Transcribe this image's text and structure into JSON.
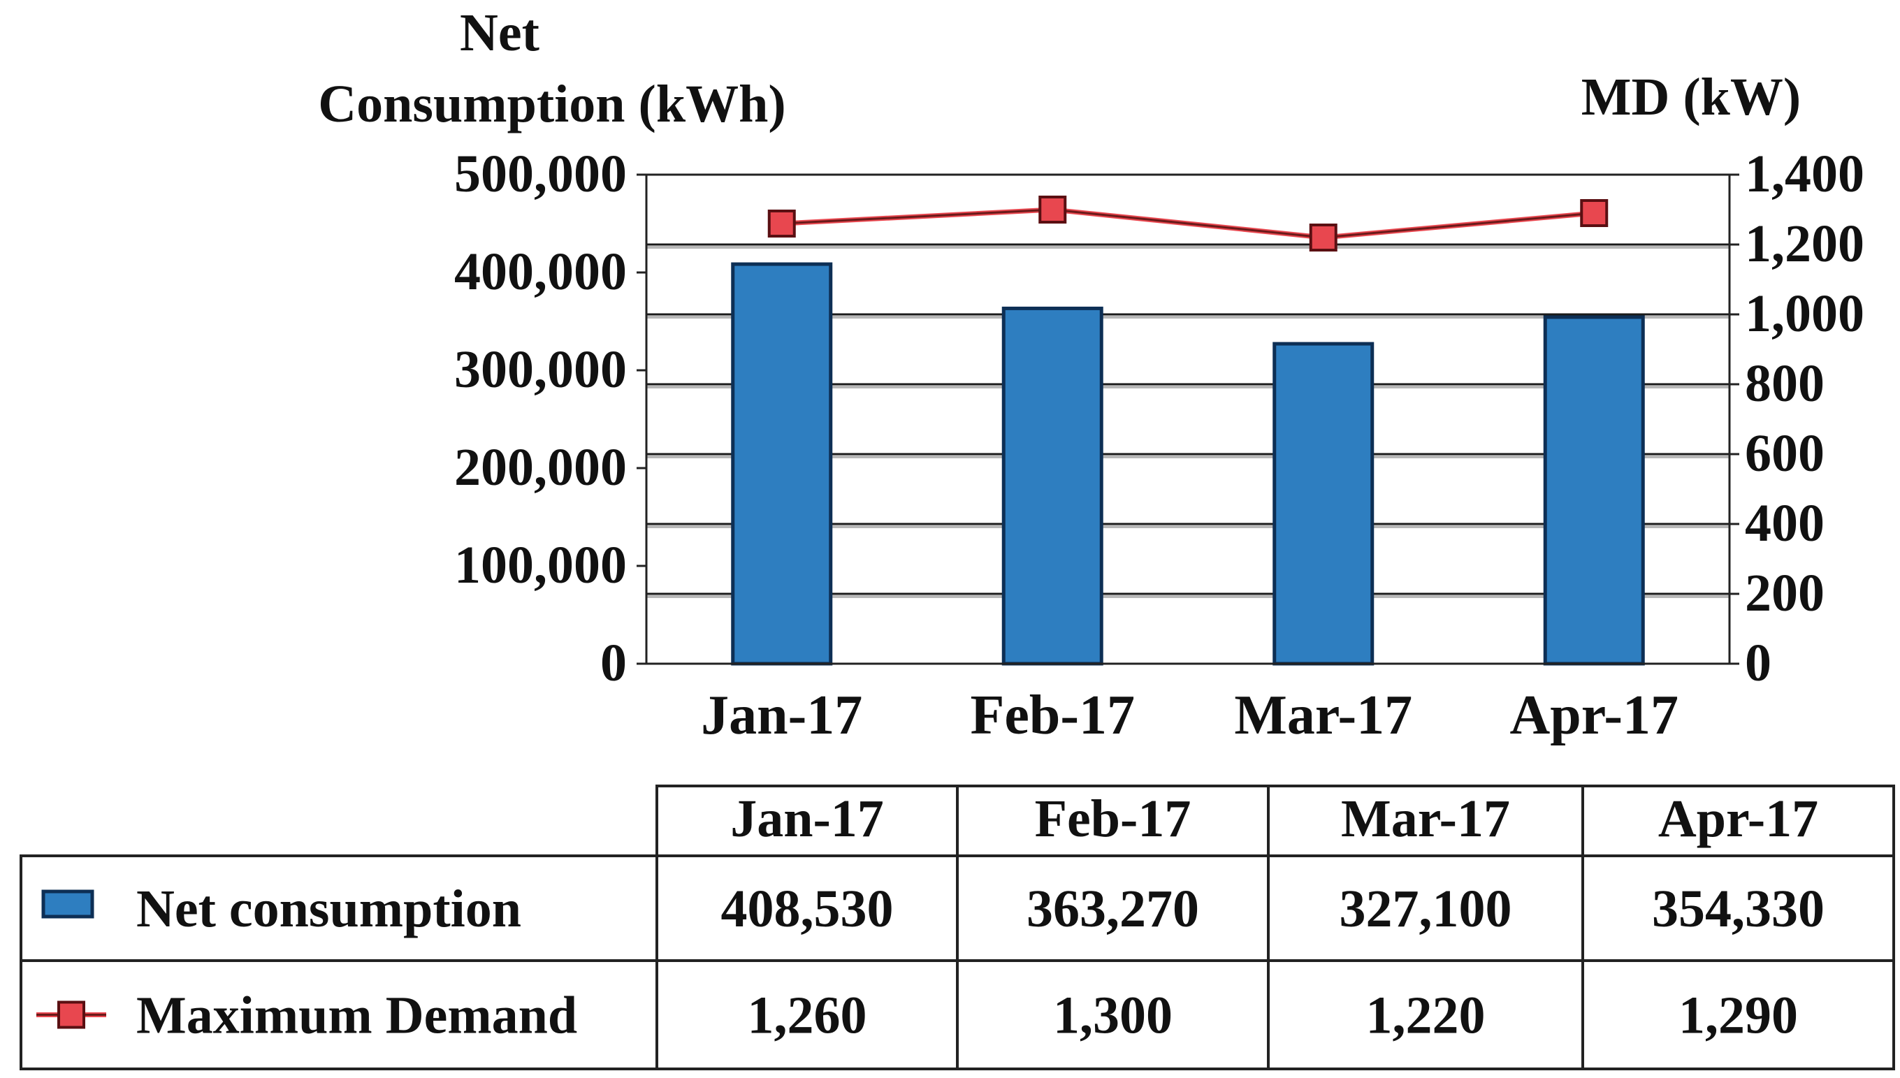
{
  "chart_data": {
    "type": "bar",
    "categories": [
      "Jan-17",
      "Feb-17",
      "Mar-17",
      "Apr-17"
    ],
    "series": [
      {
        "name": "Net consumption",
        "type": "bar",
        "axis": "left",
        "values": [
          408530,
          363270,
          327100,
          354330
        ],
        "color": "#2e7ec0"
      },
      {
        "name": "Maximum Demand",
        "type": "line",
        "axis": "right",
        "values": [
          1260,
          1300,
          1220,
          1290
        ],
        "color": "#e8474f",
        "line_color": "#6a1a1a"
      }
    ],
    "ylabel_left": {
      "line1": "Net",
      "line2": "Consumption (kWh)"
    },
    "ylabel_right": "MD (kW)",
    "ylim_left": [
      0,
      500000
    ],
    "ylim_right": [
      0,
      1400
    ],
    "yticks_left": [
      "0",
      "100,000",
      "200,000",
      "300,000",
      "400,000",
      "500,000"
    ],
    "yticks_right": [
      "0",
      "200",
      "400",
      "600",
      "800",
      "1,000",
      "1,200",
      "1,400"
    ],
    "grid": true,
    "legend_placement": "data table below chart"
  },
  "data_table": {
    "headers": [
      "Jan-17",
      "Feb-17",
      "Mar-17",
      "Apr-17"
    ],
    "rows": [
      {
        "label": "Net consumption",
        "values": [
          "408,530",
          "363,270",
          "327,100",
          "354,330"
        ]
      },
      {
        "label": "Maximum Demand",
        "values": [
          "1,260",
          "1,300",
          "1,220",
          "1,290"
        ]
      }
    ]
  }
}
